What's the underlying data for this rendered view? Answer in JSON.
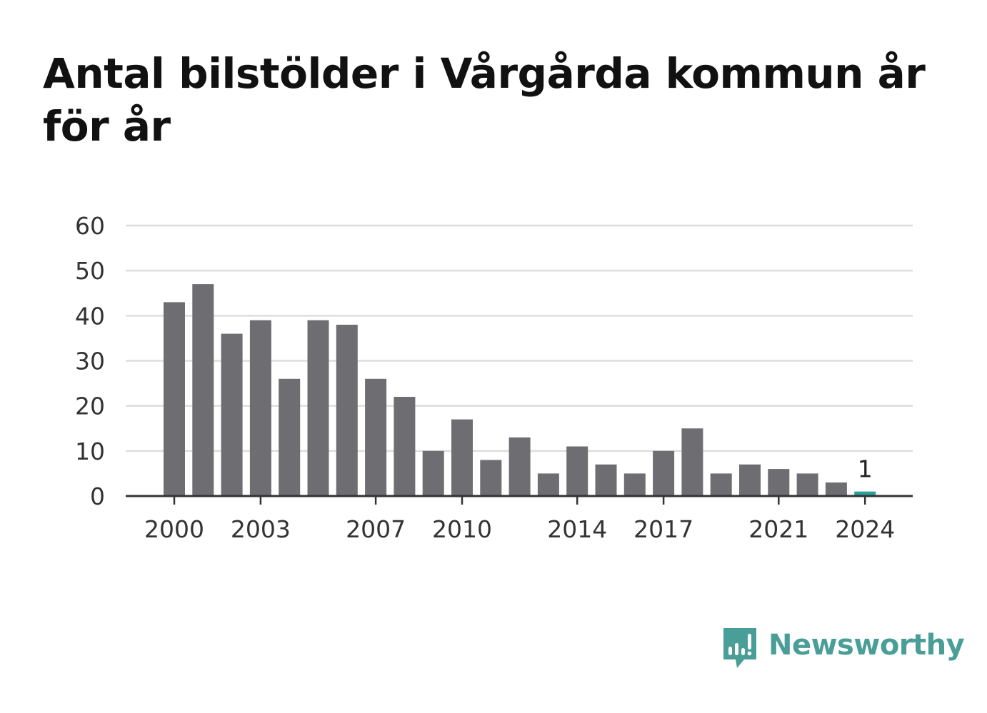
{
  "title": "Antal bilstölder i Vårgårda kommun år för år",
  "brand": "Newsworthy",
  "colors": {
    "bar": "#6e6d72",
    "highlight": "#2aa198",
    "grid": "#dddddd",
    "axis": "#333333",
    "brand": "#4a9e98"
  },
  "chart_data": {
    "type": "bar",
    "x": [
      2000,
      2001,
      2002,
      2003,
      2004,
      2005,
      2006,
      2007,
      2008,
      2009,
      2010,
      2011,
      2012,
      2013,
      2014,
      2015,
      2016,
      2017,
      2018,
      2019,
      2020,
      2021,
      2022,
      2023,
      2024
    ],
    "values": [
      43,
      47,
      36,
      39,
      26,
      39,
      38,
      26,
      22,
      10,
      17,
      8,
      13,
      5,
      11,
      7,
      5,
      10,
      15,
      5,
      7,
      6,
      5,
      3,
      1
    ],
    "xticks": [
      2000,
      2003,
      2007,
      2010,
      2014,
      2017,
      2021,
      2024
    ],
    "yticks": [
      0,
      10,
      20,
      30,
      40,
      50,
      60
    ],
    "ylim": [
      0,
      60
    ],
    "highlight_index": 24,
    "data_labels": [
      {
        "index": 24,
        "text": "1"
      }
    ],
    "grid": true,
    "title": "Antal bilstölder i Vårgårda kommun år för år"
  }
}
